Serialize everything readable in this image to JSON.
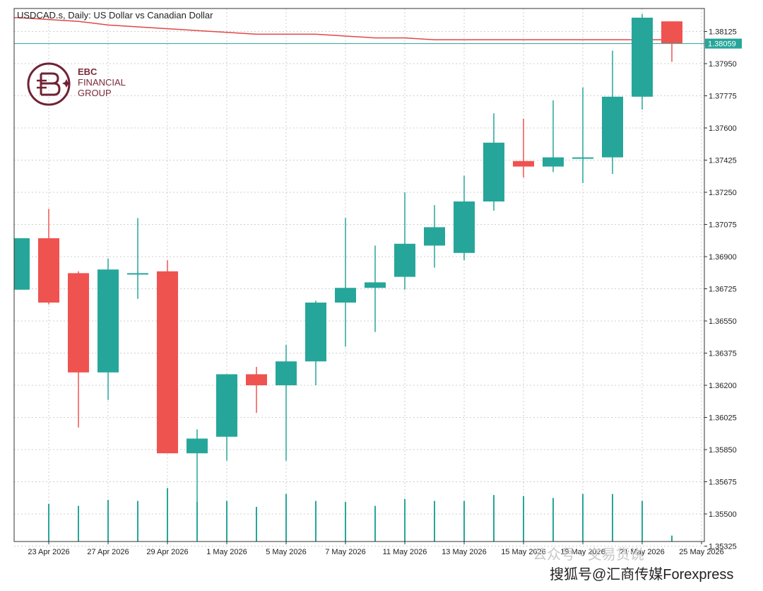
{
  "header": {
    "title": "USDCAD.s, Daily:  US Dollar vs Canadian Dollar"
  },
  "logo": {
    "line1": "EBC",
    "line2": "FINANCIAL",
    "line3": "GROUP"
  },
  "watermark": {
    "text1": "公众号 · 交易货说",
    "text2": "搜狐号@汇商传媒Forexpress"
  },
  "colors": {
    "bull": "#26a69a",
    "bear": "#ef5350",
    "ma": "#e04848",
    "price_line": "#26a69a",
    "grid": "#cfcfcf"
  },
  "chart_data": {
    "type": "candlestick",
    "title": "USDCAD.s, Daily:  US Dollar vs Canadian Dollar",
    "ylim": [
      1.3535,
      1.3825
    ],
    "y_ticks": [
      1.38125,
      1.3795,
      1.37775,
      1.376,
      1.37425,
      1.3725,
      1.37075,
      1.369,
      1.36725,
      1.3655,
      1.36375,
      1.362,
      1.36025,
      1.3585,
      1.35675,
      1.355,
      1.35325
    ],
    "y_tick_labels": [
      "1.38125",
      "1.37950",
      "1.37775",
      "1.37600",
      "1.37425",
      "1.37250",
      "1.37075",
      "1.36900",
      "1.36725",
      "1.36550",
      "1.36375",
      "1.36200",
      "1.36025",
      "1.35850",
      "1.35675",
      "1.35500",
      "1.35325"
    ],
    "current_price": 1.38059,
    "current_price_label": "1.38059",
    "x_labels": [
      "23 Apr 2026",
      "27 Apr 2026",
      "29 Apr 2026",
      "1 May 2026",
      "5 May 2026",
      "7 May 2026",
      "11 May 2026",
      "13 May 2026",
      "15 May 2026",
      "19 May 2026",
      "21 May 2026",
      "25 May 2026"
    ],
    "candles": [
      {
        "o": 1.3672,
        "h": 1.37,
        "l": 1.3672,
        "c": 1.37
      },
      {
        "o": 1.37,
        "h": 1.3716,
        "l": 1.3664,
        "c": 1.3665
      },
      {
        "o": 1.3681,
        "h": 1.3682,
        "l": 1.3597,
        "c": 1.3627
      },
      {
        "o": 1.3627,
        "h": 1.3689,
        "l": 1.3612,
        "c": 1.3683
      },
      {
        "o": 1.3681,
        "h": 1.3711,
        "l": 1.3667,
        "c": 1.3681
      },
      {
        "o": 1.3682,
        "h": 1.3688,
        "l": 1.3583,
        "c": 1.3583
      },
      {
        "o": 1.3583,
        "h": 1.3596,
        "l": 1.355,
        "c": 1.3591
      },
      {
        "o": 1.3592,
        "h": 1.3626,
        "l": 1.3579,
        "c": 1.3626
      },
      {
        "o": 1.3626,
        "h": 1.363,
        "l": 1.3605,
        "c": 1.362
      },
      {
        "o": 1.362,
        "h": 1.3642,
        "l": 1.3579,
        "c": 1.3633
      },
      {
        "o": 1.3633,
        "h": 1.3666,
        "l": 1.362,
        "c": 1.3665
      },
      {
        "o": 1.3665,
        "h": 1.3711,
        "l": 1.3641,
        "c": 1.3673
      },
      {
        "o": 1.3673,
        "h": 1.3696,
        "l": 1.3649,
        "c": 1.3676
      },
      {
        "o": 1.3679,
        "h": 1.3725,
        "l": 1.3672,
        "c": 1.3697
      },
      {
        "o": 1.3696,
        "h": 1.3718,
        "l": 1.3684,
        "c": 1.3706
      },
      {
        "o": 1.3692,
        "h": 1.3734,
        "l": 1.3688,
        "c": 1.372
      },
      {
        "o": 1.372,
        "h": 1.3768,
        "l": 1.3715,
        "c": 1.3752
      },
      {
        "o": 1.3742,
        "h": 1.3765,
        "l": 1.3733,
        "c": 1.3739
      },
      {
        "o": 1.3739,
        "h": 1.3775,
        "l": 1.3736,
        "c": 1.3744
      },
      {
        "o": 1.3744,
        "h": 1.3782,
        "l": 1.373,
        "c": 1.3744
      },
      {
        "o": 1.3744,
        "h": 1.3802,
        "l": 1.3735,
        "c": 1.3777
      },
      {
        "o": 1.3777,
        "h": 1.3822,
        "l": 1.377,
        "c": 1.382
      },
      {
        "o": 1.3818,
        "h": 1.3818,
        "l": 1.3796,
        "c": 1.3806
      }
    ],
    "volume": [
      0.0,
      0.38,
      0.36,
      0.42,
      0.41,
      0.54,
      0.4,
      0.41,
      0.35,
      0.48,
      0.41,
      0.4,
      0.36,
      0.43,
      0.41,
      0.41,
      0.47,
      0.46,
      0.44,
      0.48,
      0.48,
      0.41,
      0.06
    ],
    "moving_average": [
      1.382,
      1.3819,
      1.3818,
      1.3816,
      1.3815,
      1.3814,
      1.3813,
      1.3812,
      1.3811,
      1.3811,
      1.3811,
      1.381,
      1.3809,
      1.3809,
      1.3808,
      1.3808,
      1.3808,
      1.3808,
      1.3808,
      1.3808,
      1.3808,
      1.3808,
      1.3808
    ]
  }
}
